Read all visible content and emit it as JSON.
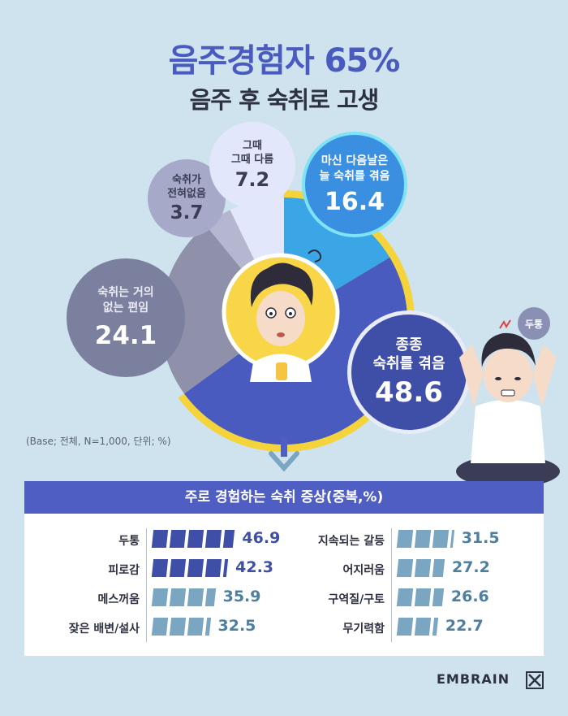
{
  "title_main": "음주경험자 65%",
  "title_sub": "음주 후 숙취로 고생",
  "base_note": "(Base; 전체, N=1,000, 단위; %)",
  "colors": {
    "often": "#4a5bc0",
    "always": "#3aa6e6",
    "depends": "#e3e7fb",
    "never": "#b4b7cf",
    "rarely": "#8e91a9",
    "ring": "#f5d33a",
    "bar_dark": "#3f4fa8",
    "bar_light": "#7aa6c2"
  },
  "chart_data": [
    {
      "type": "pie",
      "slices": [
        {
          "key": "often",
          "label_lines": [
            "종종",
            "숙취를 겪음"
          ],
          "value": 48.6
        },
        {
          "key": "always",
          "label_lines": [
            "마신 다음날은",
            "늘 숙취를 겪음"
          ],
          "value": 16.4
        },
        {
          "key": "depends",
          "label_lines": [
            "그때",
            "그때 다름"
          ],
          "value": 7.2
        },
        {
          "key": "never",
          "label_lines": [
            "숙취가",
            "전혀없음"
          ],
          "value": 3.7
        },
        {
          "key": "rarely",
          "label_lines": [
            "숙취는 거의",
            "없는 편임"
          ],
          "value": 24.1
        }
      ]
    },
    {
      "type": "bar",
      "title": "주로 경험하는 숙취 증상(중복,%)",
      "columns": [
        [
          {
            "label": "두통",
            "value": 46.9
          },
          {
            "label": "피로감",
            "value": 42.3
          },
          {
            "label": "메스꺼움",
            "value": 35.9
          },
          {
            "label": "잦은 배변/설사",
            "value": 32.5
          }
        ],
        [
          {
            "label": "지속되는 갈등",
            "value": 31.5
          },
          {
            "label": "어지러움",
            "value": 27.2
          },
          {
            "label": "구역질/구토",
            "value": 26.6
          },
          {
            "label": "무기력함",
            "value": 22.7
          }
        ]
      ]
    }
  ],
  "headache_badge": "두통",
  "logo": "EMBRAIN"
}
